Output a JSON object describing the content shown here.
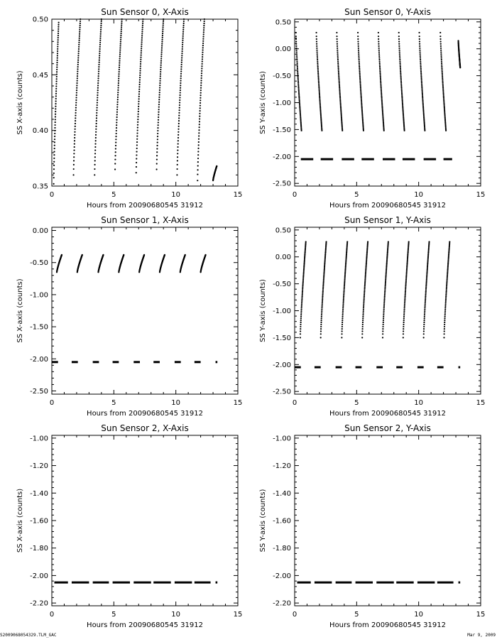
{
  "footer": {
    "left": "S2009068054329.TLM_GAC",
    "right": "Mar 9, 2009"
  },
  "chart_data": [
    {
      "type": "scatter",
      "title": "Sun Sensor 0, X-Axis",
      "xlabel": "Hours from 20090680545 31912",
      "ylabel": "SS X-axis (counts)",
      "xlim": [
        0,
        15
      ],
      "ylim": [
        0.35,
        0.5
      ],
      "xticks": [
        0,
        5,
        10,
        15
      ],
      "yticks": [
        0.35,
        0.4,
        0.45,
        0.5
      ],
      "ytick_labels": [
        "0.35",
        "0.40",
        "0.45",
        "0.50"
      ],
      "segments": [
        {
          "x_start": 0.15,
          "x_end": 0.55,
          "y_start": 0.352,
          "y_end": 0.497
        },
        {
          "x_start": 1.75,
          "x_end": 2.3,
          "y_start": 0.36,
          "y_end": 0.5
        },
        {
          "x_start": 3.45,
          "x_end": 4.0,
          "y_start": 0.36,
          "y_end": 0.5
        },
        {
          "x_start": 5.1,
          "x_end": 5.65,
          "y_start": 0.365,
          "y_end": 0.5
        },
        {
          "x_start": 6.8,
          "x_end": 7.35,
          "y_start": 0.362,
          "y_end": 0.5
        },
        {
          "x_start": 8.45,
          "x_end": 9.0,
          "y_start": 0.365,
          "y_end": 0.5
        },
        {
          "x_start": 10.1,
          "x_end": 10.65,
          "y_start": 0.36,
          "y_end": 0.5
        },
        {
          "x_start": 11.75,
          "x_end": 12.3,
          "y_start": 0.355,
          "y_end": 0.5
        },
        {
          "x_start": 13.0,
          "x_end": 13.3,
          "y_start": 0.355,
          "y_end": 0.368
        }
      ]
    },
    {
      "type": "scatter",
      "title": "Sun Sensor 0, Y-Axis",
      "xlabel": "Hours from 20090680545 31912",
      "ylabel": "SS Y-axis (counts)",
      "xlim": [
        0,
        15
      ],
      "ylim": [
        -2.55,
        0.55
      ],
      "xticks": [
        0,
        5,
        10,
        15
      ],
      "yticks": [
        -2.5,
        -2.0,
        -1.5,
        -1.0,
        -0.5,
        0.0,
        0.5
      ],
      "ytick_labels": [
        "-2.50",
        "-2.00",
        "-1.50",
        "-1.00",
        "-0.50",
        "0.00",
        "0.50"
      ],
      "segments": [
        {
          "x_start": 0.1,
          "x_end": 0.55,
          "y_start": 0.3,
          "y_end": -1.52
        },
        {
          "x_start": 1.75,
          "x_end": 2.2,
          "y_start": 0.3,
          "y_end": -1.52
        },
        {
          "x_start": 3.4,
          "x_end": 3.85,
          "y_start": 0.3,
          "y_end": -1.52
        },
        {
          "x_start": 5.1,
          "x_end": 5.55,
          "y_start": 0.3,
          "y_end": -1.52
        },
        {
          "x_start": 6.75,
          "x_end": 7.2,
          "y_start": 0.3,
          "y_end": -1.52
        },
        {
          "x_start": 8.4,
          "x_end": 8.85,
          "y_start": 0.3,
          "y_end": -1.52
        },
        {
          "x_start": 10.05,
          "x_end": 10.5,
          "y_start": 0.3,
          "y_end": -1.52
        },
        {
          "x_start": 11.75,
          "x_end": 12.2,
          "y_start": 0.3,
          "y_end": -1.52
        },
        {
          "x_start": 13.2,
          "x_end": 13.35,
          "y_start": 0.15,
          "y_end": -0.35
        }
      ],
      "baseline": {
        "y": -2.05,
        "ranges": [
          [
            0.5,
            1.5
          ],
          [
            2.1,
            3.1
          ],
          [
            3.8,
            4.8
          ],
          [
            5.4,
            6.4
          ],
          [
            7.1,
            8.1
          ],
          [
            8.7,
            9.7
          ],
          [
            10.4,
            11.4
          ],
          [
            12.0,
            12.7
          ]
        ]
      }
    },
    {
      "type": "scatter",
      "title": "Sun Sensor 1, X-Axis",
      "xlabel": "Hours from 20090680545 31912",
      "ylabel": "SS X-axis (counts)",
      "xlim": [
        0,
        15
      ],
      "ylim": [
        -2.55,
        0.05
      ],
      "xticks": [
        0,
        5,
        10,
        15
      ],
      "yticks": [
        -2.5,
        -2.0,
        -1.5,
        -1.0,
        -0.5,
        0.0
      ],
      "ytick_labels": [
        "-2.50",
        "-2.00",
        "-1.50",
        "-1.00",
        "-0.50",
        "0.00"
      ],
      "segments": [
        {
          "x_start": 0.4,
          "x_end": 0.8,
          "y_start": -0.65,
          "y_end": -0.38
        },
        {
          "x_start": 2.05,
          "x_end": 2.45,
          "y_start": -0.65,
          "y_end": -0.38
        },
        {
          "x_start": 3.75,
          "x_end": 4.15,
          "y_start": -0.65,
          "y_end": -0.38
        },
        {
          "x_start": 5.4,
          "x_end": 5.8,
          "y_start": -0.65,
          "y_end": -0.38
        },
        {
          "x_start": 7.05,
          "x_end": 7.45,
          "y_start": -0.65,
          "y_end": -0.38
        },
        {
          "x_start": 8.7,
          "x_end": 9.1,
          "y_start": -0.65,
          "y_end": -0.38
        },
        {
          "x_start": 10.35,
          "x_end": 10.75,
          "y_start": -0.65,
          "y_end": -0.38
        },
        {
          "x_start": 12.0,
          "x_end": 12.4,
          "y_start": -0.65,
          "y_end": -0.38
        }
      ],
      "baseline": {
        "y": -2.05,
        "ranges": [
          [
            0,
            0.5
          ],
          [
            1.6,
            2.1
          ],
          [
            3.3,
            3.8
          ],
          [
            4.9,
            5.4
          ],
          [
            6.6,
            7.1
          ],
          [
            8.2,
            8.7
          ],
          [
            9.9,
            10.4
          ],
          [
            11.5,
            12.0
          ],
          [
            13.2,
            13.35
          ]
        ]
      }
    },
    {
      "type": "scatter",
      "title": "Sun Sensor 1, Y-Axis",
      "xlabel": "Hours from 20090680545 31912",
      "ylabel": "SS Y-axis (counts)",
      "xlim": [
        0,
        15
      ],
      "ylim": [
        -2.55,
        0.55
      ],
      "xticks": [
        0,
        5,
        10,
        15
      ],
      "yticks": [
        -2.5,
        -2.0,
        -1.5,
        -1.0,
        -0.5,
        0.0,
        0.5
      ],
      "ytick_labels": [
        "-2.50",
        "-2.00",
        "-1.50",
        "-1.00",
        "-0.50",
        "0.00",
        "0.50"
      ],
      "segments": [
        {
          "x_start": 0.45,
          "x_end": 0.9,
          "y_start": -1.5,
          "y_end": 0.28
        },
        {
          "x_start": 2.1,
          "x_end": 2.55,
          "y_start": -1.5,
          "y_end": 0.28
        },
        {
          "x_start": 3.8,
          "x_end": 4.25,
          "y_start": -1.5,
          "y_end": 0.28
        },
        {
          "x_start": 5.45,
          "x_end": 5.9,
          "y_start": -1.5,
          "y_end": 0.28
        },
        {
          "x_start": 7.1,
          "x_end": 7.55,
          "y_start": -1.5,
          "y_end": 0.28
        },
        {
          "x_start": 8.75,
          "x_end": 9.2,
          "y_start": -1.5,
          "y_end": 0.28
        },
        {
          "x_start": 10.4,
          "x_end": 10.85,
          "y_start": -1.5,
          "y_end": 0.28
        },
        {
          "x_start": 12.05,
          "x_end": 12.5,
          "y_start": -1.5,
          "y_end": 0.28
        }
      ],
      "baseline": {
        "y": -2.05,
        "ranges": [
          [
            0,
            0.5
          ],
          [
            1.6,
            2.1
          ],
          [
            3.3,
            3.8
          ],
          [
            4.9,
            5.4
          ],
          [
            6.6,
            7.1
          ],
          [
            8.2,
            8.7
          ],
          [
            9.9,
            10.4
          ],
          [
            11.5,
            12.0
          ],
          [
            13.2,
            13.35
          ]
        ]
      }
    },
    {
      "type": "scatter",
      "title": "Sun Sensor 2, X-Axis",
      "xlabel": "Hours from 20090680545 31912",
      "ylabel": "SS X-axis (counts)",
      "xlim": [
        0,
        15
      ],
      "ylim": [
        -2.22,
        -0.98
      ],
      "xticks": [
        0,
        5,
        10,
        15
      ],
      "yticks": [
        -2.2,
        -2.0,
        -1.8,
        -1.6,
        -1.4,
        -1.2,
        -1.0
      ],
      "ytick_labels": [
        "-2.20",
        "-2.00",
        "-1.80",
        "-1.60",
        "-1.40",
        "-1.20",
        "-1.00"
      ],
      "segments": [],
      "baseline": {
        "y": -2.05,
        "ranges": [
          [
            0.2,
            1.3
          ],
          [
            1.6,
            3.0
          ],
          [
            3.3,
            4.6
          ],
          [
            4.9,
            6.3
          ],
          [
            6.6,
            8.0
          ],
          [
            8.2,
            9.6
          ],
          [
            9.9,
            11.3
          ],
          [
            11.5,
            12.8
          ],
          [
            13.2,
            13.35
          ]
        ]
      }
    },
    {
      "type": "scatter",
      "title": "Sun Sensor 2, Y-Axis",
      "xlabel": "Hours from 20090680545 31912",
      "ylabel": "SS Y-axis (counts)",
      "xlim": [
        0,
        15
      ],
      "ylim": [
        -2.22,
        -0.98
      ],
      "xticks": [
        0,
        5,
        10,
        15
      ],
      "yticks": [
        -2.2,
        -2.0,
        -1.8,
        -1.6,
        -1.4,
        -1.2,
        -1.0
      ],
      "ytick_labels": [
        "-2.20",
        "-2.00",
        "-1.80",
        "-1.60",
        "-1.40",
        "-1.20",
        "-1.00"
      ],
      "segments": [],
      "baseline": {
        "y": -2.05,
        "ranges": [
          [
            0.2,
            1.3
          ],
          [
            1.6,
            3.0
          ],
          [
            3.3,
            4.6
          ],
          [
            4.9,
            6.3
          ],
          [
            6.6,
            8.0
          ],
          [
            8.2,
            9.6
          ],
          [
            9.9,
            11.3
          ],
          [
            11.5,
            12.8
          ],
          [
            13.2,
            13.35
          ]
        ]
      }
    }
  ]
}
